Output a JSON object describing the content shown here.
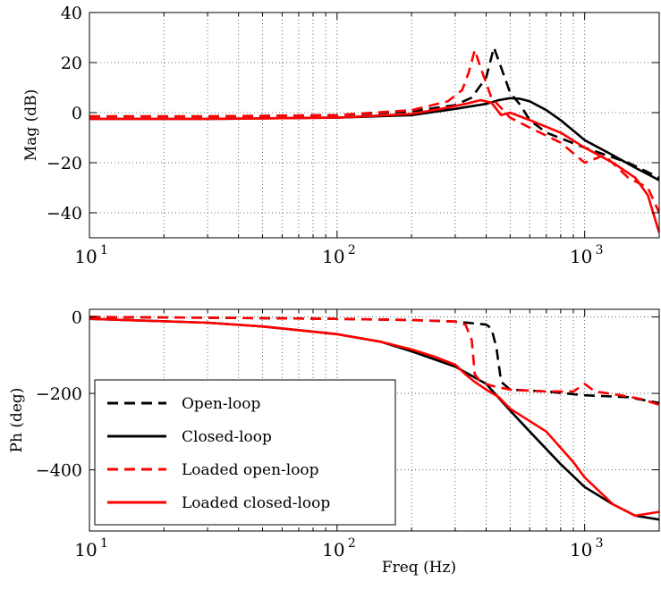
{
  "chart_data": [
    {
      "type": "line",
      "title": "",
      "xlabel": "",
      "ylabel": "Mag (dB)",
      "xscale": "log",
      "xlim": [
        10,
        2000
      ],
      "ylim": [
        -50,
        40
      ],
      "grid": "dotted",
      "x_tick_labels": [
        "10",
        "10",
        "10"
      ],
      "x_tick_exponents": [
        "1",
        "2",
        "3"
      ],
      "y_tick_labels": [
        "40",
        "20",
        "0",
        "−20",
        "−40"
      ],
      "series": [
        {
          "name": "Open-loop",
          "color": "#000000",
          "dash": "dashed",
          "x": [
            10,
            30,
            100,
            200,
            300,
            350,
            400,
            430,
            460,
            500,
            550,
            600,
            700,
            1000,
            1500,
            2000
          ],
          "y": [
            -1.5,
            -1.5,
            -1.0,
            0.5,
            3,
            6,
            14,
            26,
            18,
            8,
            3,
            -3,
            -8,
            -14,
            -20,
            -26
          ]
        },
        {
          "name": "Closed-loop",
          "color": "#000000",
          "dash": "solid",
          "x": [
            10,
            30,
            100,
            200,
            300,
            400,
            450,
            500,
            550,
            600,
            700,
            800,
            1000,
            1300,
            1600,
            2000
          ],
          "y": [
            -2.5,
            -2.5,
            -2.0,
            -1.0,
            1.5,
            3.5,
            5.0,
            5.8,
            5.5,
            4.5,
            1.0,
            -3.0,
            -11,
            -17,
            -22,
            -27
          ]
        },
        {
          "name": "Loaded open-loop",
          "color": "#ff0000",
          "dash": "dashed",
          "x": [
            10,
            30,
            100,
            200,
            280,
            320,
            340,
            360,
            380,
            420,
            500,
            600,
            800,
            1000,
            1200,
            1500,
            1800,
            2000
          ],
          "y": [
            -1.5,
            -1.5,
            -1.0,
            1.0,
            4.5,
            9.0,
            16,
            25,
            18,
            6,
            -2,
            -6,
            -12,
            -20,
            -17,
            -26,
            -30,
            -40
          ]
        },
        {
          "name": "Loaded closed-loop",
          "color": "#ff0000",
          "dash": "solid",
          "x": [
            10,
            30,
            100,
            200,
            280,
            330,
            380,
            420,
            460,
            500,
            600,
            800,
            1000,
            1300,
            1600,
            1800,
            2000
          ],
          "y": [
            -2.5,
            -2.5,
            -2.0,
            -0.5,
            2.0,
            3.5,
            5.0,
            4.0,
            -1.0,
            0.0,
            -3.0,
            -8,
            -14,
            -20,
            -26,
            -33,
            -48
          ]
        }
      ]
    },
    {
      "type": "line",
      "title": "",
      "xlabel": "Freq (Hz)",
      "ylabel": "Ph (deg)",
      "xscale": "log",
      "xlim": [
        10,
        2000
      ],
      "ylim": [
        -560,
        20
      ],
      "grid": "dotted",
      "legend": "bottom-left",
      "x_tick_labels": [
        "10",
        "10",
        "10"
      ],
      "x_tick_exponents": [
        "1",
        "2",
        "3"
      ],
      "y_tick_labels": [
        "0",
        "−200",
        "−400"
      ],
      "series": [
        {
          "name": "Open-loop",
          "color": "#000000",
          "dash": "dashed",
          "x": [
            10,
            30,
            100,
            200,
            300,
            400,
            420,
            440,
            460,
            500,
            700,
            1000,
            1500,
            2000
          ],
          "y": [
            0,
            -2,
            -5,
            -8,
            -12,
            -20,
            -30,
            -80,
            -170,
            -190,
            -195,
            -205,
            -210,
            -225
          ]
        },
        {
          "name": "Closed-loop",
          "color": "#000000",
          "dash": "solid",
          "x": [
            10,
            30,
            50,
            100,
            150,
            200,
            300,
            400,
            500,
            600,
            800,
            1000,
            1300,
            1600,
            2000
          ],
          "y": [
            -5,
            -15,
            -25,
            -45,
            -65,
            -90,
            -130,
            -175,
            -245,
            -300,
            -385,
            -445,
            -490,
            -520,
            -530
          ]
        },
        {
          "name": "Loaded open-loop",
          "color": "#ff0000",
          "dash": "dashed",
          "x": [
            10,
            30,
            100,
            200,
            300,
            330,
            350,
            360,
            380,
            420,
            500,
            700,
            900,
            1000,
            1100,
            1400,
            1700,
            2000
          ],
          "y": [
            0,
            -2,
            -5,
            -8,
            -12,
            -20,
            -60,
            -150,
            -170,
            -180,
            -190,
            -195,
            -195,
            -175,
            -195,
            -205,
            -215,
            -230
          ]
        },
        {
          "name": "Loaded closed-loop",
          "color": "#ff0000",
          "dash": "solid",
          "x": [
            10,
            30,
            50,
            100,
            150,
            200,
            250,
            300,
            330,
            360,
            400,
            450,
            500,
            700,
            900,
            1000,
            1300,
            1600,
            2000
          ],
          "y": [
            -5,
            -15,
            -25,
            -45,
            -65,
            -85,
            -105,
            -125,
            -150,
            -170,
            -190,
            -210,
            -240,
            -300,
            -380,
            -420,
            -490,
            -520,
            -510
          ]
        }
      ]
    }
  ]
}
